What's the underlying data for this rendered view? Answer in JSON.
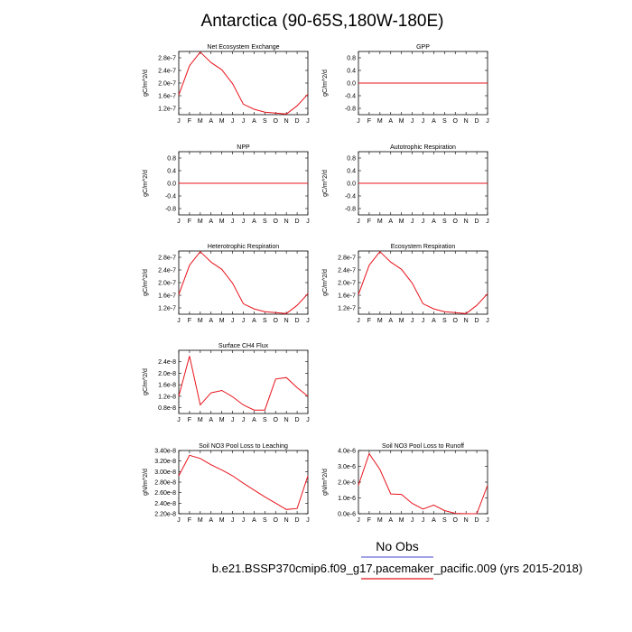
{
  "figure": {
    "title": "Antarctica (90-65S,180W-180E)",
    "legend_label": "No Obs",
    "caption": "b.e21.BSSP370cmip6.f09_g17.pacemaker_pacific.009 (yrs 2015-2018)",
    "line_color": "#e8141c",
    "legend_line_color": "#6b6bd6"
  },
  "chart_data": [
    {
      "type": "line",
      "title": "Net Ecosystem Exchange",
      "ylabel": "gC/m^2/d",
      "categories": [
        "J",
        "F",
        "M",
        "A",
        "M",
        "J",
        "J",
        "A",
        "S",
        "O",
        "N",
        "D",
        "J"
      ],
      "ylim": [
        1e-07,
        3e-07
      ],
      "yticks": [
        1.2e-07,
        1.6e-07,
        2e-07,
        2.4e-07,
        2.8e-07
      ],
      "ytick_labels": [
        "1.2e-7",
        "1.6e-7",
        "2.0e-7",
        "2.4e-7",
        "2.8e-7"
      ],
      "values": [
        1.62e-07,
        2.55e-07,
        2.98e-07,
        2.65e-07,
        2.42e-07,
        1.98e-07,
        1.33e-07,
        1.17e-07,
        1.08e-07,
        1.05e-07,
        1.02e-07,
        1.28e-07,
        1.65e-07
      ]
    },
    {
      "type": "line",
      "title": "GPP",
      "ylabel": "gC/m^2/d",
      "categories": [
        "J",
        "F",
        "M",
        "A",
        "M",
        "J",
        "J",
        "A",
        "S",
        "O",
        "N",
        "D",
        "J"
      ],
      "ylim": [
        -1.0,
        1.0
      ],
      "yticks": [
        -0.8,
        -0.4,
        0.0,
        0.4,
        0.8
      ],
      "ytick_labels": [
        "-0.8",
        "-0.4",
        "0.0",
        "0.4",
        "0.8"
      ],
      "values": [
        0,
        0,
        0,
        0,
        0,
        0,
        0,
        0,
        0,
        0,
        0,
        0,
        0
      ]
    },
    {
      "type": "line",
      "title": "NPP",
      "ylabel": "gC/m^2/d",
      "categories": [
        "J",
        "F",
        "M",
        "A",
        "M",
        "J",
        "J",
        "A",
        "S",
        "O",
        "N",
        "D",
        "J"
      ],
      "ylim": [
        -1.0,
        1.0
      ],
      "yticks": [
        -0.8,
        -0.4,
        0.0,
        0.4,
        0.8
      ],
      "ytick_labels": [
        "-0.8",
        "-0.4",
        "0.0",
        "0.4",
        "0.8"
      ],
      "values": [
        0,
        0,
        0,
        0,
        0,
        0,
        0,
        0,
        0,
        0,
        0,
        0,
        0
      ]
    },
    {
      "type": "line",
      "title": "Autotrophic Respiration",
      "ylabel": "gC/m^2/d",
      "categories": [
        "J",
        "F",
        "M",
        "A",
        "M",
        "J",
        "J",
        "A",
        "S",
        "O",
        "N",
        "D",
        "J"
      ],
      "ylim": [
        -1.0,
        1.0
      ],
      "yticks": [
        -0.8,
        -0.4,
        0.0,
        0.4,
        0.8
      ],
      "ytick_labels": [
        "-0.8",
        "-0.4",
        "0.0",
        "0.4",
        "0.8"
      ],
      "values": [
        0,
        0,
        0,
        0,
        0,
        0,
        0,
        0,
        0,
        0,
        0,
        0,
        0
      ]
    },
    {
      "type": "line",
      "title": "Heterotrophic Respiration",
      "ylabel": "gC/m^2/d",
      "categories": [
        "J",
        "F",
        "M",
        "A",
        "M",
        "J",
        "J",
        "A",
        "S",
        "O",
        "N",
        "D",
        "J"
      ],
      "ylim": [
        1e-07,
        3e-07
      ],
      "yticks": [
        1.2e-07,
        1.6e-07,
        2e-07,
        2.4e-07,
        2.8e-07
      ],
      "ytick_labels": [
        "1.2e-7",
        "1.6e-7",
        "2.0e-7",
        "2.4e-7",
        "2.8e-7"
      ],
      "values": [
        1.62e-07,
        2.55e-07,
        2.98e-07,
        2.65e-07,
        2.42e-07,
        1.98e-07,
        1.33e-07,
        1.17e-07,
        1.08e-07,
        1.05e-07,
        1.02e-07,
        1.28e-07,
        1.65e-07
      ]
    },
    {
      "type": "line",
      "title": "Ecosystem Respiration",
      "ylabel": "gC/m^2/d",
      "categories": [
        "J",
        "F",
        "M",
        "A",
        "M",
        "J",
        "J",
        "A",
        "S",
        "O",
        "N",
        "D",
        "J"
      ],
      "ylim": [
        1e-07,
        3e-07
      ],
      "yticks": [
        1.2e-07,
        1.6e-07,
        2e-07,
        2.4e-07,
        2.8e-07
      ],
      "ytick_labels": [
        "1.2e-7",
        "1.6e-7",
        "2.0e-7",
        "2.4e-7",
        "2.8e-7"
      ],
      "values": [
        1.62e-07,
        2.55e-07,
        2.98e-07,
        2.65e-07,
        2.42e-07,
        1.98e-07,
        1.33e-07,
        1.17e-07,
        1.08e-07,
        1.05e-07,
        1.02e-07,
        1.28e-07,
        1.65e-07
      ]
    },
    {
      "type": "line",
      "title": "Surface CH4 Flux",
      "ylabel": "gC/m^2/d",
      "categories": [
        "J",
        "F",
        "M",
        "A",
        "M",
        "J",
        "J",
        "A",
        "S",
        "O",
        "N",
        "D",
        "J"
      ],
      "ylim": [
        6e-09,
        2.8e-08
      ],
      "yticks": [
        8e-09,
        1.2e-08,
        1.6e-08,
        2e-08,
        2.4e-08
      ],
      "ytick_labels": [
        "0.8e-8",
        "1.2e-8",
        "1.6e-8",
        "2.0e-8",
        "2.4e-8"
      ],
      "values": [
        1.2e-08,
        2.6e-08,
        9e-09,
        1.32e-08,
        1.4e-08,
        1.18e-08,
        9e-09,
        7.2e-09,
        7.2e-09,
        1.8e-08,
        1.85e-08,
        1.5e-08,
        1.2e-08
      ]
    },
    {
      "type": "line",
      "title": "Soil NO3 Pool Loss to Leaching",
      "ylabel": "gN/m^2/d",
      "categories": [
        "J",
        "F",
        "M",
        "A",
        "M",
        "J",
        "J",
        "A",
        "S",
        "O",
        "N",
        "D",
        "J"
      ],
      "ylim": [
        2.2e-08,
        3.4e-08
      ],
      "yticks": [
        2.2e-08,
        2.4e-08,
        2.6e-08,
        2.8e-08,
        3e-08,
        3.2e-08,
        3.4e-08
      ],
      "ytick_labels": [
        "2.20e-8",
        "2.40e-8",
        "2.60e-8",
        "2.80e-8",
        "3.00e-8",
        "3.20e-8",
        "3.40e-8"
      ],
      "values": [
        2.92e-08,
        3.31e-08,
        3.25e-08,
        3.13e-08,
        3.03e-08,
        2.92e-08,
        2.78e-08,
        2.65e-08,
        2.52e-08,
        2.4e-08,
        2.28e-08,
        2.3e-08,
        2.92e-08
      ]
    },
    {
      "type": "line",
      "title": "Soil NO3 Pool Loss to Runoff",
      "ylabel": "gN/m^2/d",
      "categories": [
        "J",
        "F",
        "M",
        "A",
        "M",
        "J",
        "J",
        "A",
        "S",
        "O",
        "N",
        "D",
        "J"
      ],
      "ylim": [
        0.0,
        4e-06
      ],
      "yticks": [
        0.0,
        1e-06,
        2e-06,
        3e-06,
        4e-06
      ],
      "ytick_labels": [
        "0.0e-6",
        "1.0e-6",
        "2.0e-6",
        "3.0e-6",
        "4.0e-6"
      ],
      "values": [
        1.8e-06,
        3.8e-06,
        2.8e-06,
        1.25e-06,
        1.22e-06,
        6.5e-07,
        3e-07,
        5.5e-07,
        2e-07,
        2e-08,
        0.0,
        0.0,
        1.8e-06
      ]
    }
  ]
}
